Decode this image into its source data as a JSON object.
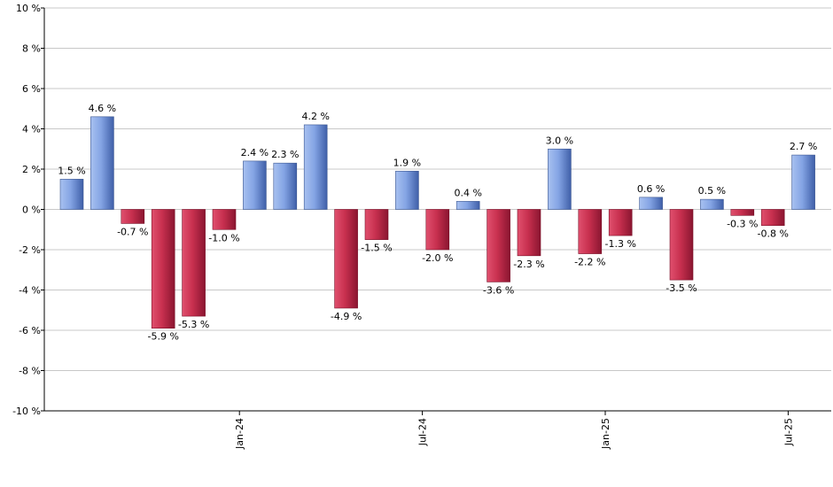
{
  "chart_data": {
    "type": "bar",
    "ylim": [
      -10,
      10
    ],
    "y_ticks": [
      10,
      8,
      6,
      4,
      2,
      0,
      -2,
      -4,
      -6,
      -8,
      -10
    ],
    "y_tick_labels": [
      "10 %",
      "8 %",
      "6 %",
      "4 %",
      "2 %",
      "0 %",
      "-2 %",
      "-4 %",
      "-6 %",
      "-8 %",
      "-10 %"
    ],
    "grid": true,
    "legend": "none",
    "x_tick_labels": [
      {
        "label": "Jan-24",
        "after_index": 5
      },
      {
        "label": "Jul-24",
        "after_index": 11
      },
      {
        "label": "Jan-25",
        "after_index": 17
      },
      {
        "label": "Jul-25",
        "after_index": 23
      }
    ],
    "values": [
      1.5,
      4.6,
      -0.7,
      -5.9,
      -5.3,
      -1.0,
      2.4,
      2.3,
      4.2,
      -4.9,
      -1.5,
      1.9,
      -2.0,
      0.4,
      -3.6,
      -2.3,
      3.0,
      -2.2,
      -1.3,
      0.6,
      -3.5,
      0.5,
      -0.3,
      -0.8,
      2.7
    ],
    "labels": [
      "1.5 %",
      "4.6 %",
      "-0.7 %",
      "-5.9 %",
      "-5.3 %",
      "-1.0 %",
      "2.4 %",
      "2.3 %",
      "4.2 %",
      "-4.9 %",
      "-1.5 %",
      "1.9 %",
      "-2.0 %",
      "0.4 %",
      "-3.6 %",
      "-2.3 %",
      "3.0 %",
      "-2.2 %",
      "-1.3 %",
      "0.6 %",
      "-3.5 %",
      "0.5 %",
      "-0.3 %",
      "-0.8 %",
      "2.7 %"
    ],
    "colors": {
      "positive": "#6d8fd6",
      "negative": "#c2284a",
      "grid": "#c8c8c8",
      "axis": "#000000"
    }
  }
}
